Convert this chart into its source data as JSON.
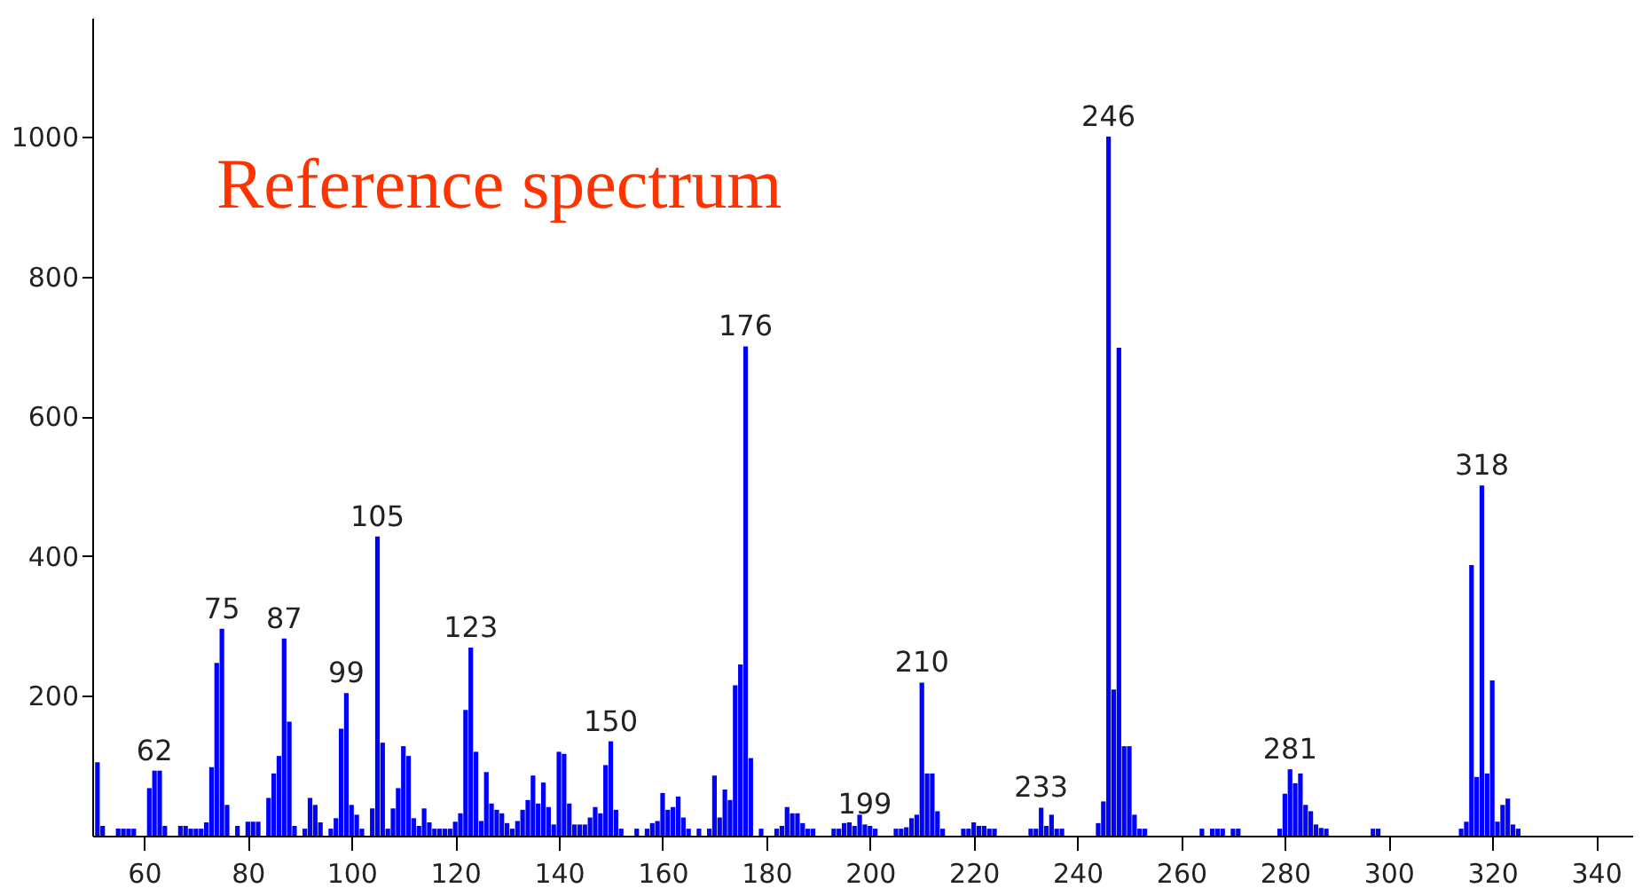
{
  "chart_data": {
    "type": "bar",
    "x": [
      51,
      52,
      55,
      56,
      57,
      58,
      61,
      62,
      63,
      64,
      67,
      68,
      69,
      70,
      71,
      72,
      73,
      74,
      75,
      76,
      78,
      80,
      81,
      82,
      84,
      85,
      86,
      87,
      88,
      89,
      91,
      92,
      93,
      94,
      96,
      97,
      98,
      99,
      100,
      101,
      102,
      104,
      105,
      106,
      107,
      108,
      109,
      110,
      111,
      112,
      113,
      114,
      115,
      116,
      117,
      118,
      119,
      120,
      121,
      122,
      123,
      124,
      125,
      126,
      127,
      128,
      129,
      130,
      131,
      132,
      133,
      134,
      135,
      136,
      137,
      138,
      139,
      140,
      141,
      142,
      143,
      144,
      145,
      146,
      147,
      148,
      149,
      150,
      151,
      152,
      155,
      157,
      158,
      159,
      160,
      161,
      162,
      163,
      164,
      165,
      167,
      169,
      170,
      171,
      172,
      173,
      174,
      175,
      176,
      177,
      179,
      182,
      183,
      184,
      185,
      186,
      187,
      188,
      189,
      193,
      194,
      195,
      196,
      197,
      198,
      199,
      200,
      201,
      205,
      206,
      207,
      208,
      209,
      210,
      211,
      212,
      213,
      214,
      218,
      219,
      220,
      221,
      222,
      223,
      224,
      231,
      232,
      233,
      234,
      235,
      236,
      237,
      244,
      245,
      246,
      247,
      248,
      249,
      250,
      251,
      252,
      253,
      264,
      266,
      267,
      268,
      270,
      271,
      279,
      280,
      281,
      282,
      283,
      284,
      285,
      286,
      287,
      288,
      297,
      298,
      314,
      315,
      316,
      317,
      318,
      319,
      320,
      321,
      322,
      323,
      324,
      325
    ],
    "values": [
      105,
      14,
      10,
      10,
      10,
      10,
      68,
      93,
      93,
      14,
      14,
      14,
      10,
      10,
      10,
      19,
      98,
      247,
      296,
      44,
      14,
      20,
      20,
      20,
      54,
      89,
      114,
      282,
      163,
      14,
      10,
      54,
      44,
      19,
      10,
      25,
      153,
      204,
      44,
      30,
      10,
      39,
      428,
      133,
      10,
      39,
      68,
      128,
      114,
      25,
      14,
      39,
      19,
      10,
      10,
      10,
      10,
      20,
      32,
      180,
      269,
      120,
      21,
      91,
      46,
      37,
      32,
      18,
      10,
      21,
      37,
      51,
      86,
      46,
      76,
      41,
      16,
      120,
      117,
      46,
      16,
      16,
      16,
      26,
      41,
      32,
      101,
      135,
      37,
      10,
      10,
      10,
      18,
      21,
      61,
      37,
      41,
      56,
      26,
      10,
      10,
      10,
      86,
      26,
      66,
      51,
      215,
      245,
      700,
      111,
      10,
      10,
      14,
      41,
      32,
      32,
      18,
      10,
      10,
      10,
      10,
      18,
      19,
      14,
      30,
      16,
      14,
      10,
      10,
      10,
      12,
      25,
      30,
      219,
      89,
      89,
      35,
      10,
      10,
      10,
      19,
      14,
      14,
      10,
      10,
      10,
      10,
      40,
      14,
      30,
      10,
      10,
      18,
      49,
      1000,
      209,
      698,
      128,
      128,
      30,
      10,
      10,
      10,
      10,
      10,
      10,
      10,
      10,
      10,
      60,
      95,
      75,
      89,
      44,
      35,
      16,
      11,
      10,
      10,
      10,
      10,
      20,
      387,
      84,
      501,
      89,
      222,
      20,
      44,
      53,
      16,
      10
    ],
    "color": "#0000ff",
    "xlim": [
      50,
      347
    ],
    "xticks": [
      60,
      80,
      100,
      120,
      140,
      160,
      180,
      200,
      220,
      240,
      260,
      280,
      300,
      320,
      340
    ],
    "ylim": [
      0,
      1170
    ],
    "yticks": [
      200,
      400,
      600,
      800,
      1000
    ],
    "grid": false,
    "annotations": [
      "Reference spectrum",
      {
        "text": "62",
        "x": 62,
        "y": 93
      },
      {
        "text": "75",
        "x": 75,
        "y": 296
      },
      {
        "text": "87",
        "x": 87,
        "y": 282
      },
      {
        "text": "99",
        "x": 99,
        "y": 204
      },
      {
        "text": "105",
        "x": 105,
        "y": 428
      },
      {
        "text": "123",
        "x": 123,
        "y": 269
      },
      {
        "text": "150",
        "x": 150,
        "y": 135
      },
      {
        "text": "176",
        "x": 176,
        "y": 700
      },
      {
        "text": "199",
        "x": 199,
        "y": 16
      },
      {
        "text": "210",
        "x": 210,
        "y": 219
      },
      {
        "text": "233",
        "x": 233,
        "y": 40
      },
      {
        "text": "246",
        "x": 246,
        "y": 1000
      },
      {
        "text": "281",
        "x": 281,
        "y": 95
      },
      {
        "text": "318",
        "x": 318,
        "y": 501
      }
    ]
  }
}
